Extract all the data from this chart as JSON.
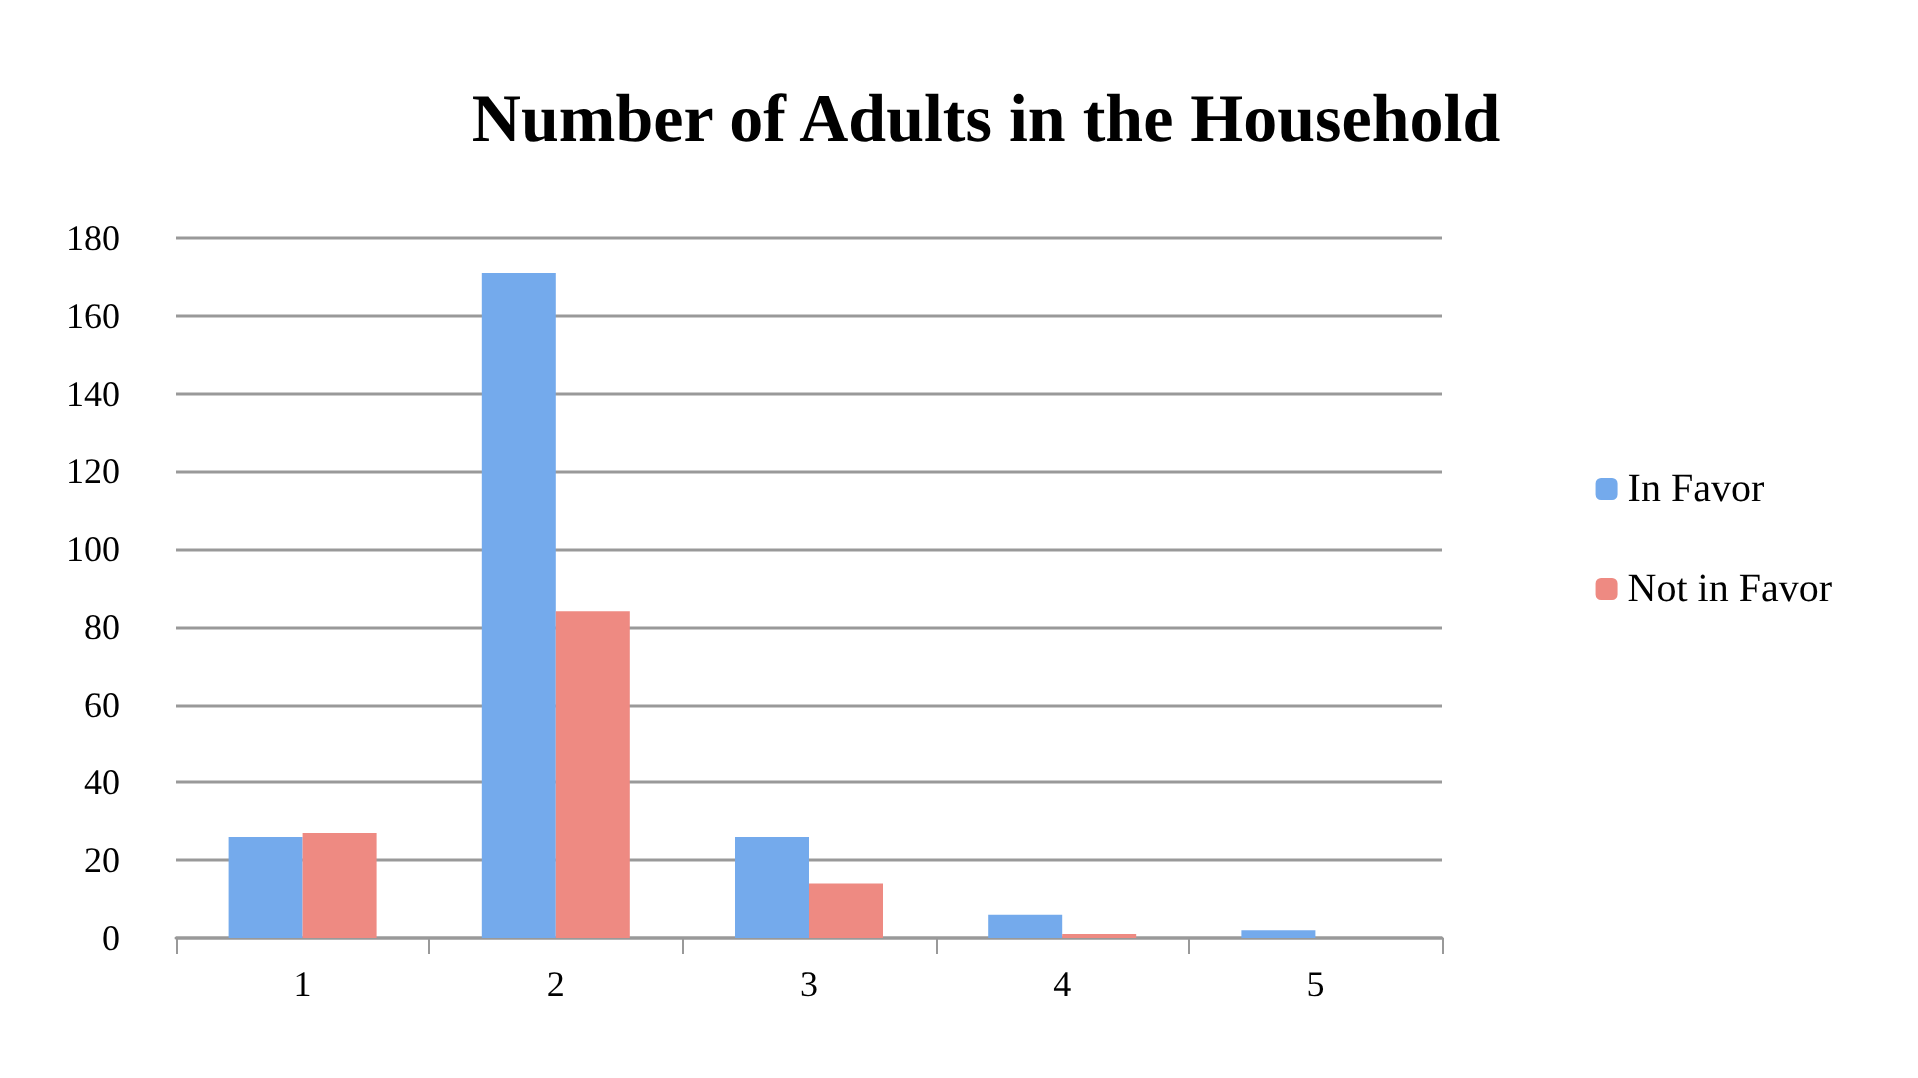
{
  "chart_data": {
    "type": "bar",
    "title": "Number of Adults in the Household",
    "categories": [
      "1",
      "2",
      "3",
      "4",
      "5"
    ],
    "series": [
      {
        "name": "In Favor",
        "color": "#74aaec",
        "values": [
          26,
          171,
          26,
          6,
          2
        ]
      },
      {
        "name": "Not in Favor",
        "color": "#ee8a82",
        "values": [
          27,
          84,
          14,
          1,
          0
        ]
      }
    ],
    "ylim": [
      0,
      180
    ],
    "yticks": [
      0,
      20,
      40,
      60,
      80,
      100,
      120,
      140,
      160,
      180
    ],
    "grid": "y",
    "legend": "right"
  }
}
